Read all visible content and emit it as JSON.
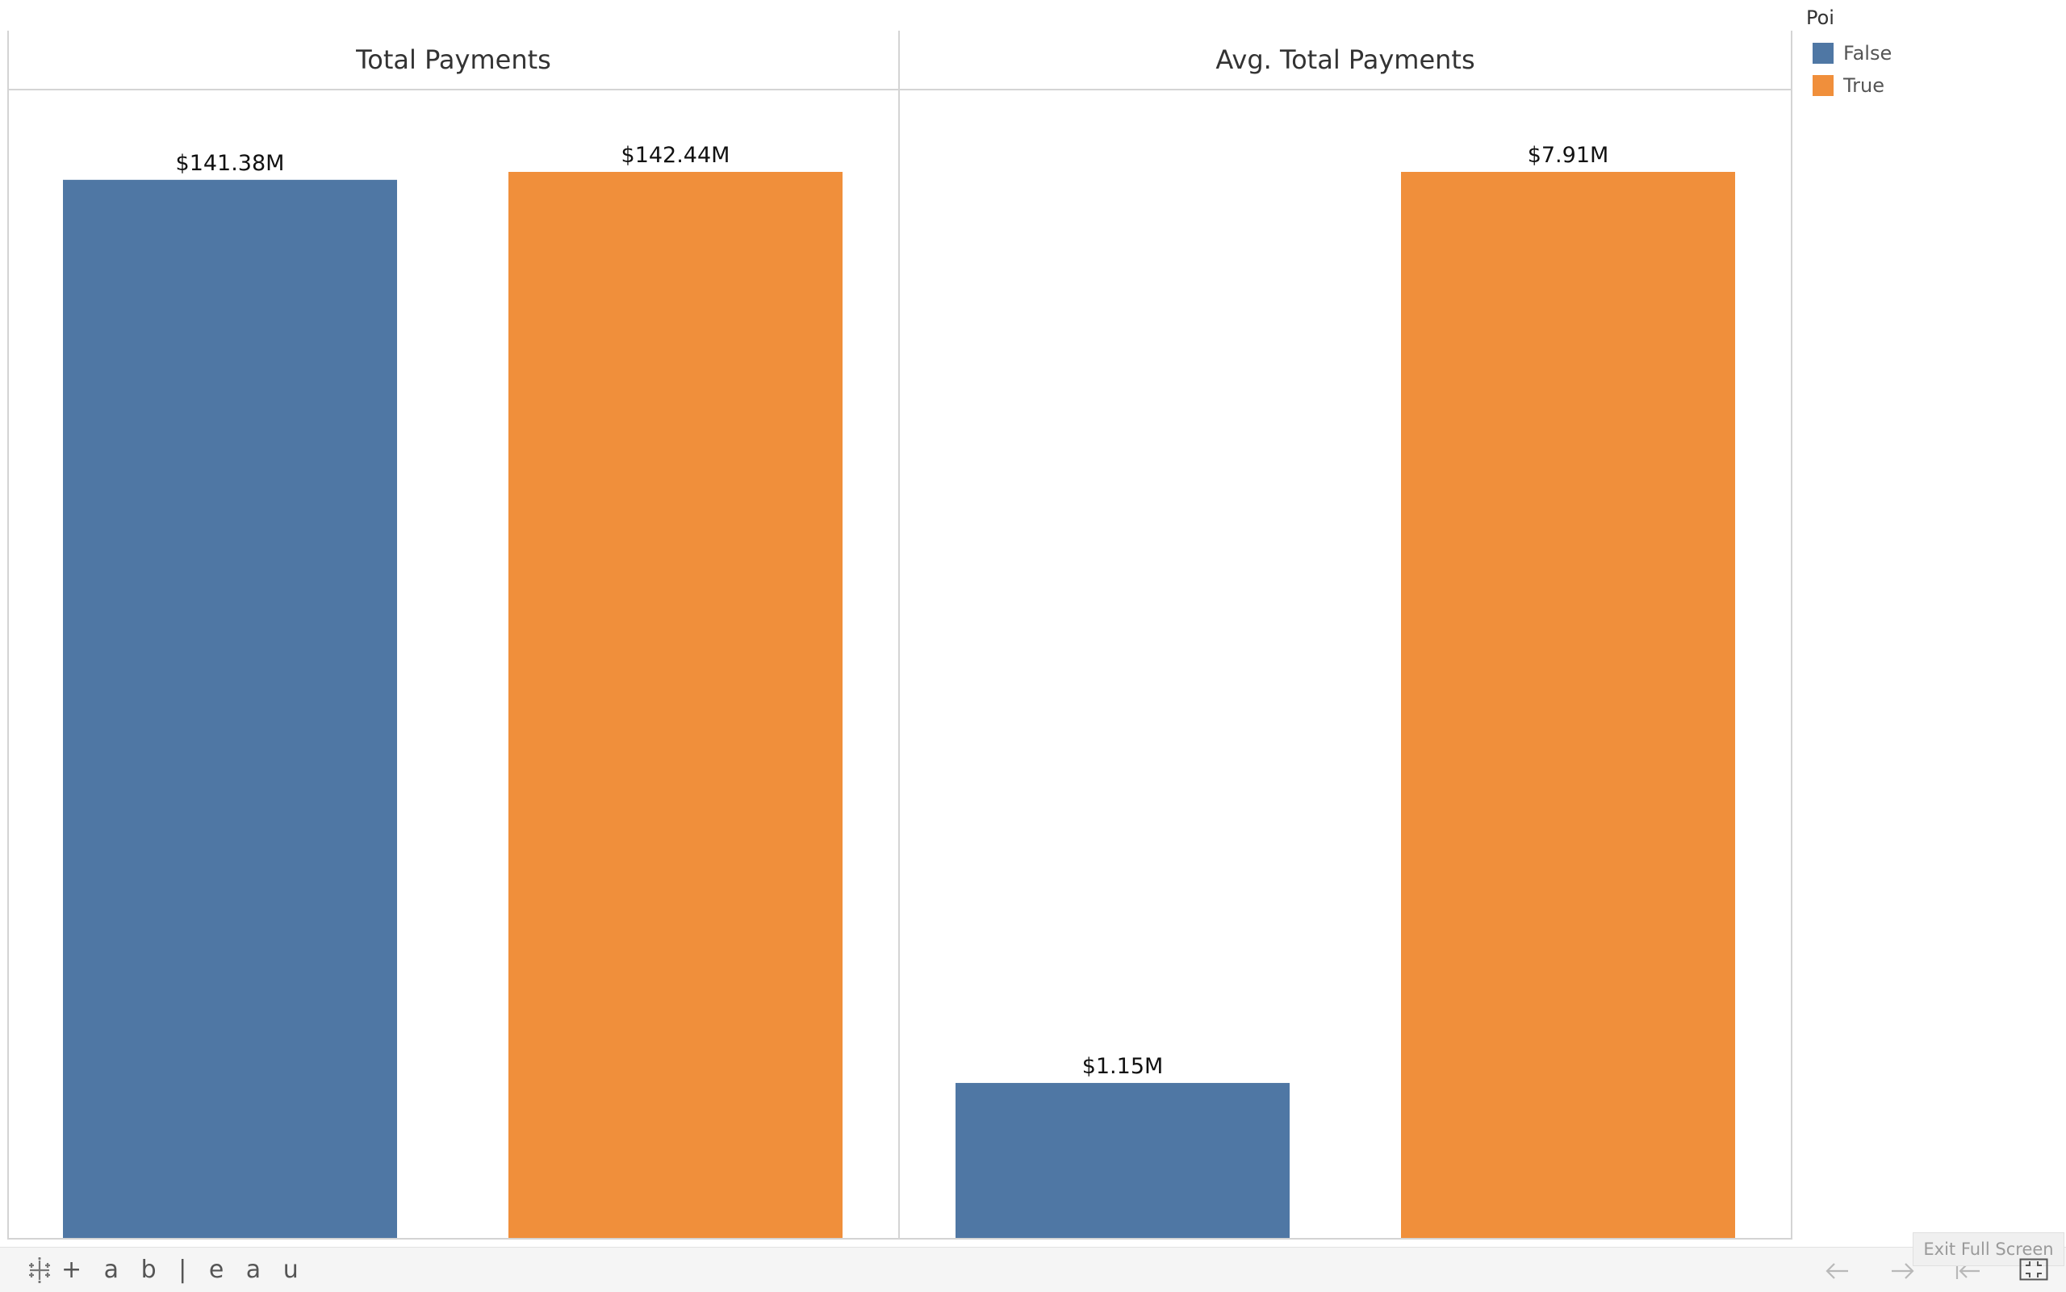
{
  "chart_data": {
    "type": "bar",
    "panes": [
      {
        "title": "Total Payments",
        "categories": [
          "False",
          "True"
        ],
        "values": [
          141.38,
          142.44
        ],
        "labels": [
          "$141.38M",
          "$142.44M"
        ],
        "ylim": [
          0,
          142.44
        ]
      },
      {
        "title": "Avg. Total Payments",
        "categories": [
          "False",
          "True"
        ],
        "values": [
          1.15,
          7.91
        ],
        "labels": [
          "$1.15M",
          "$7.91M"
        ],
        "ylim": [
          0,
          7.91
        ]
      }
    ],
    "legend": {
      "title": "Poi",
      "position": "top-right",
      "items": [
        {
          "label": "False",
          "color": "#4f77a4"
        },
        {
          "label": "True",
          "color": "#f08f3b"
        }
      ]
    },
    "grid": false
  },
  "toolbar": {
    "brand": "+ a b | e a u",
    "exit_fullscreen_tooltip": "Exit Full Screen",
    "icons": [
      "tableau-logo-icon",
      "back-arrow-icon",
      "forward-arrow-icon",
      "revert-icon",
      "fullscreen-icon"
    ]
  }
}
